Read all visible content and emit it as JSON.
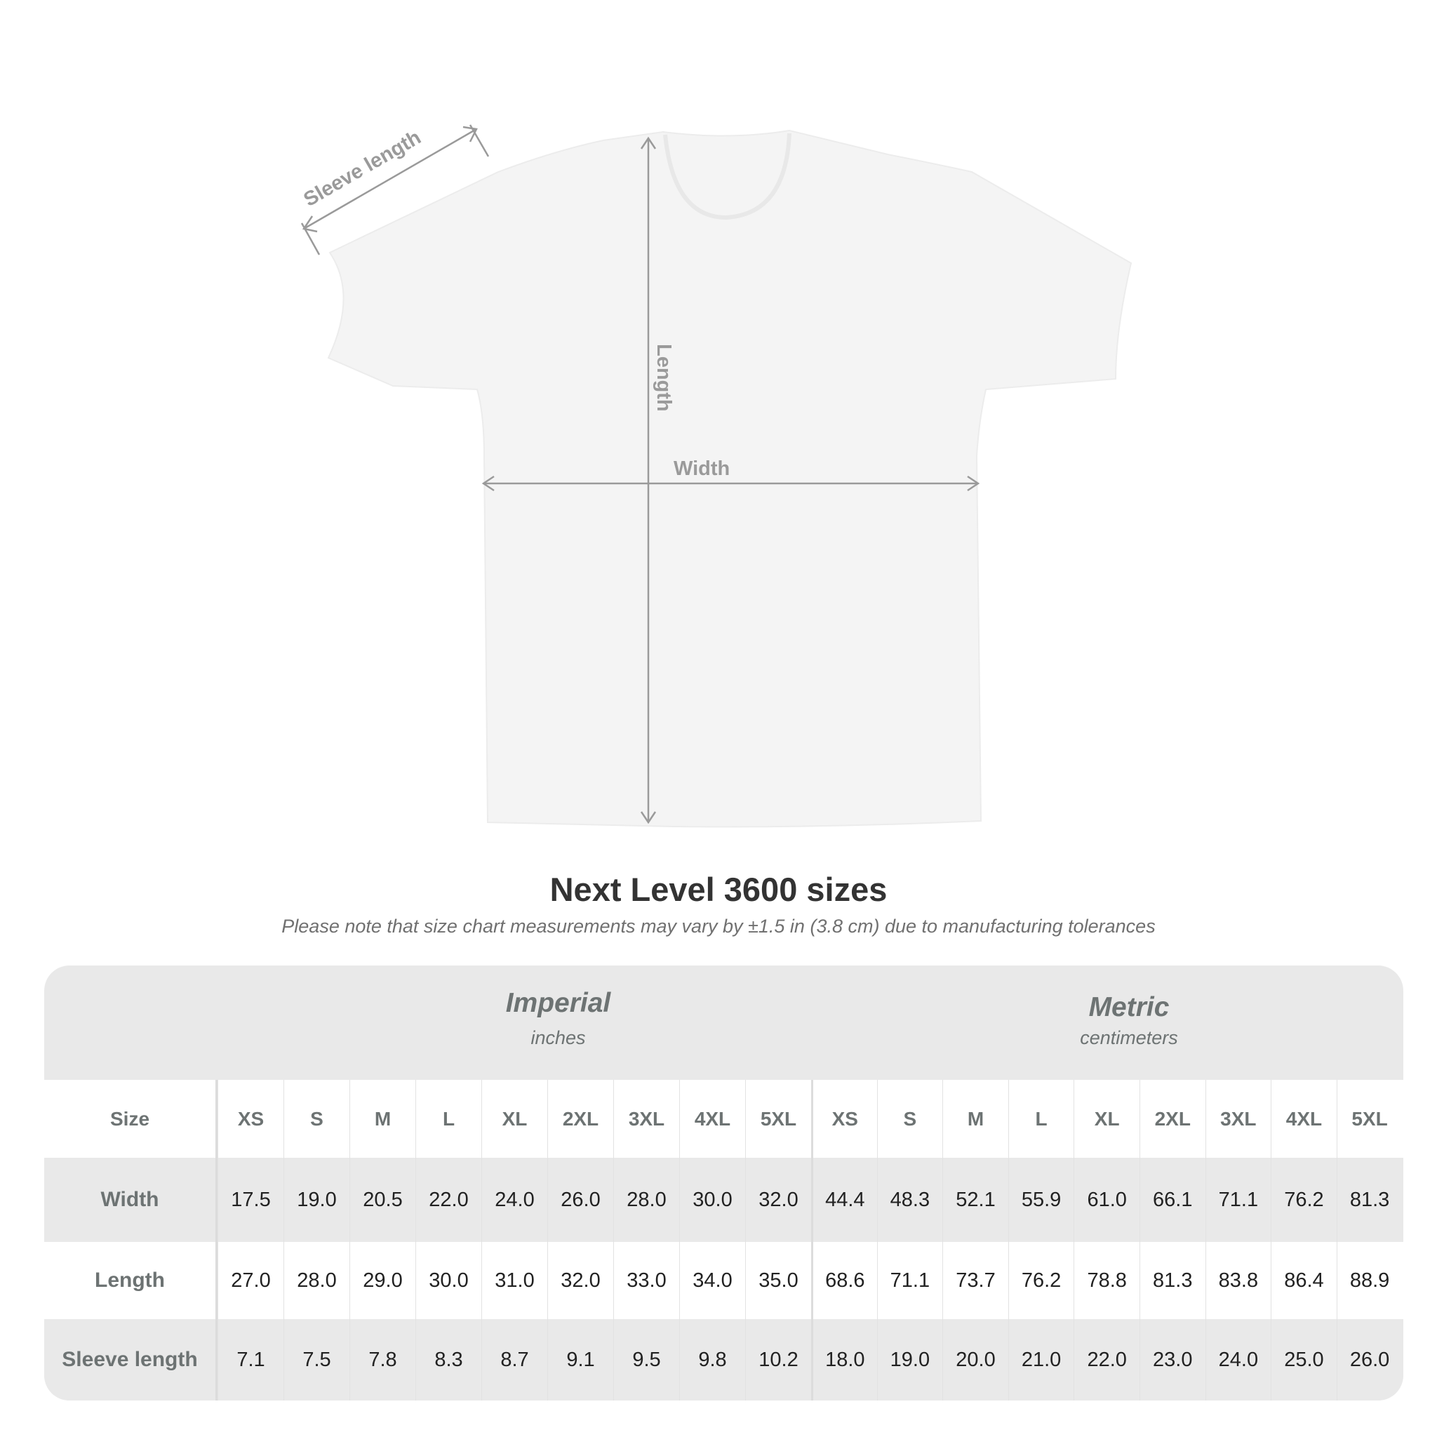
{
  "diagram": {
    "sleeve_label": "Sleeve length",
    "length_label": "Length",
    "width_label": "Width",
    "shirt_color": "#f4f4f4",
    "annotation_color": "#9a9a9a"
  },
  "title": "Next Level 3600 sizes",
  "subtitle": "Please note that size chart measurements may vary by ±1.5 in (3.8 cm) due to manufacturing tolerances",
  "table": {
    "imperial": {
      "name": "Imperial",
      "unit": "inches"
    },
    "metric": {
      "name": "Metric",
      "unit": "centimeters"
    },
    "size_label": "Size",
    "sizes": [
      "XS",
      "S",
      "M",
      "L",
      "XL",
      "2XL",
      "3XL",
      "4XL",
      "5XL"
    ],
    "rows": [
      {
        "label": "Width",
        "imperial": [
          "17.5",
          "19.0",
          "20.5",
          "22.0",
          "24.0",
          "26.0",
          "28.0",
          "30.0",
          "32.0"
        ],
        "metric": [
          "44.4",
          "48.3",
          "52.1",
          "55.9",
          "61.0",
          "66.1",
          "71.1",
          "76.2",
          "81.3"
        ]
      },
      {
        "label": "Length",
        "imperial": [
          "27.0",
          "28.0",
          "29.0",
          "30.0",
          "31.0",
          "32.0",
          "33.0",
          "34.0",
          "35.0"
        ],
        "metric": [
          "68.6",
          "71.1",
          "73.7",
          "76.2",
          "78.8",
          "81.3",
          "83.8",
          "86.4",
          "88.9"
        ]
      },
      {
        "label": "Sleeve length",
        "imperial": [
          "7.1",
          "7.5",
          "7.8",
          "8.3",
          "8.7",
          "9.1",
          "9.5",
          "9.8",
          "10.2"
        ],
        "metric": [
          "18.0",
          "19.0",
          "20.0",
          "21.0",
          "22.0",
          "23.0",
          "24.0",
          "25.0",
          "26.0"
        ]
      }
    ]
  }
}
